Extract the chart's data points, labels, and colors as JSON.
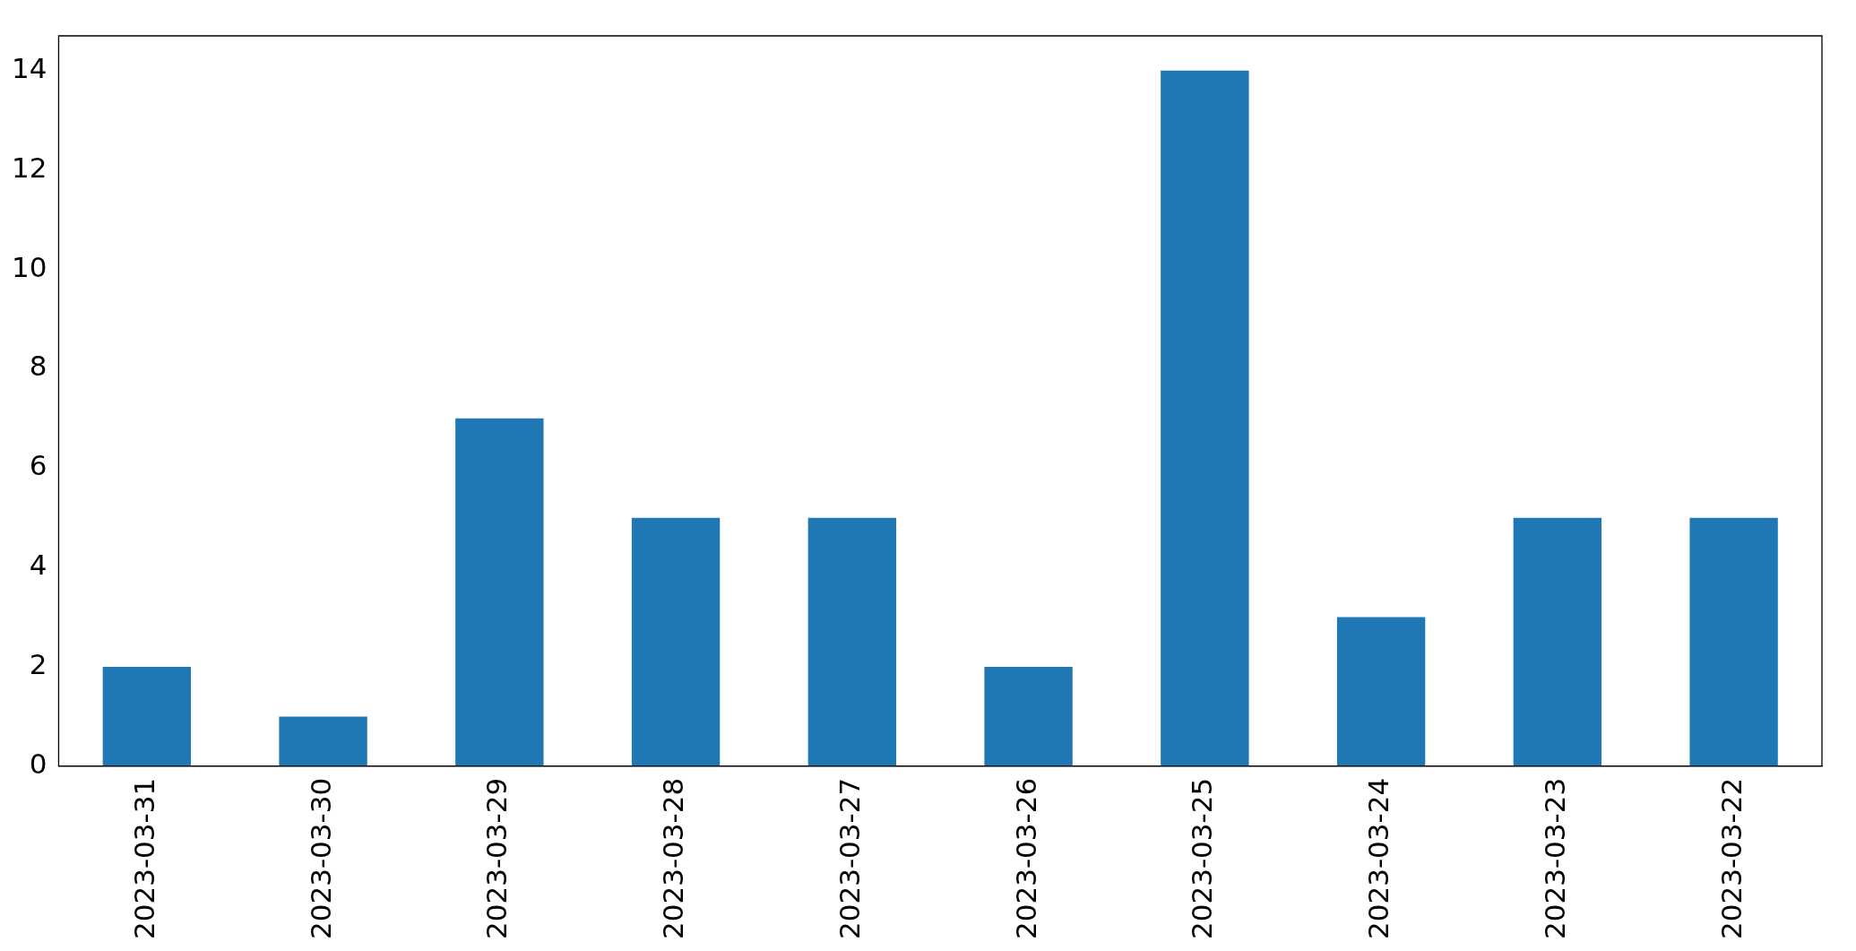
{
  "chart_data": {
    "type": "bar",
    "categories": [
      "2023-03-31",
      "2023-03-30",
      "2023-03-29",
      "2023-03-28",
      "2023-03-27",
      "2023-03-26",
      "2023-03-25",
      "2023-03-24",
      "2023-03-23",
      "2023-03-22"
    ],
    "values": [
      2,
      1,
      7,
      5,
      5,
      2,
      14,
      3,
      5,
      5
    ],
    "color": "#1f77b4",
    "ylim": [
      0,
      14.7
    ],
    "yticks": [
      0,
      2,
      4,
      6,
      8,
      10,
      12,
      14
    ],
    "grid": false,
    "legend": false
  }
}
